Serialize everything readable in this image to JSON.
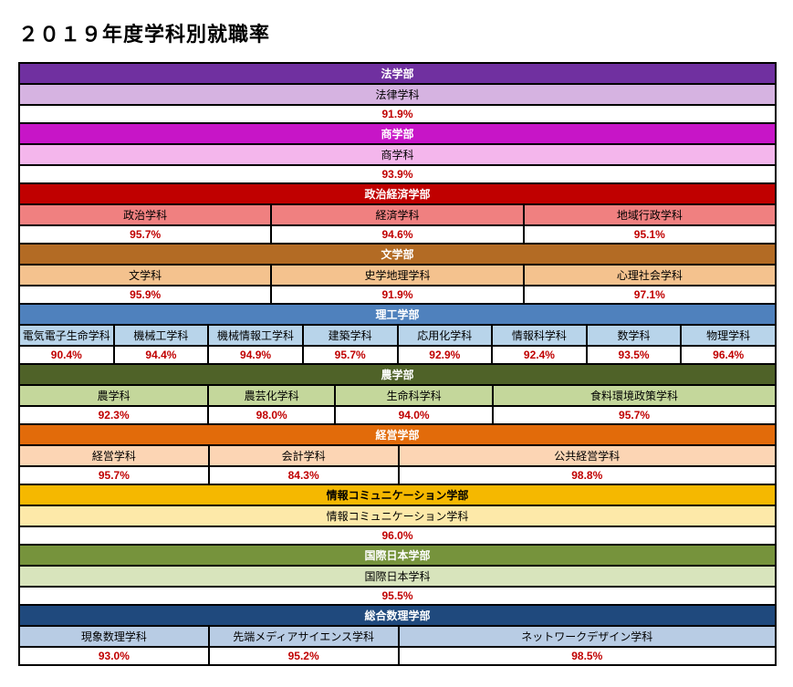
{
  "title": "２０１９年度学科別就職率",
  "colors": {
    "rate_text": "#c00000",
    "border": "#000000"
  },
  "faculties": [
    {
      "name": "法学部",
      "header_bg": "#7030a0",
      "header_text": "#ffffff",
      "dept_bg": "#d6b3e1",
      "departments": [
        {
          "name": "法律学科",
          "rate": "91.9%",
          "span": 24
        }
      ]
    },
    {
      "name": "商学部",
      "header_bg": "#c715c7",
      "header_text": "#ffffff",
      "dept_bg": "#f4b6ec",
      "departments": [
        {
          "name": "商学科",
          "rate": "93.9%",
          "span": 24
        }
      ]
    },
    {
      "name": "政治経済学部",
      "header_bg": "#c00000",
      "header_text": "#ffffff",
      "dept_bg": "#f08080",
      "departments": [
        {
          "name": "政治学科",
          "rate": "95.7%",
          "span": 8
        },
        {
          "name": "経済学科",
          "rate": "94.6%",
          "span": 8
        },
        {
          "name": "地域行政学科",
          "rate": "95.1%",
          "span": 8
        }
      ]
    },
    {
      "name": "文学部",
      "header_bg": "#b36b24",
      "header_text": "#ffffff",
      "dept_bg": "#f4c28e",
      "departments": [
        {
          "name": "文学科",
          "rate": "95.9%",
          "span": 8
        },
        {
          "name": "史学地理学科",
          "rate": "91.9%",
          "span": 8
        },
        {
          "name": "心理社会学科",
          "rate": "97.1%",
          "span": 8
        }
      ]
    },
    {
      "name": "理工学部",
      "header_bg": "#4f81bd",
      "header_text": "#ffffff",
      "dept_bg": "#b8d4ea",
      "departments": [
        {
          "name": "電気電子生命学科",
          "rate": "90.4%",
          "span": 3
        },
        {
          "name": "機械工学科",
          "rate": "94.4%",
          "span": 3
        },
        {
          "name": "機械情報工学科",
          "rate": "94.9%",
          "span": 3
        },
        {
          "name": "建築学科",
          "rate": "95.7%",
          "span": 3
        },
        {
          "name": "応用化学科",
          "rate": "92.9%",
          "span": 3
        },
        {
          "name": "情報科学科",
          "rate": "92.4%",
          "span": 3
        },
        {
          "name": "数学科",
          "rate": "93.5%",
          "span": 3
        },
        {
          "name": "物理学科",
          "rate": "96.4%",
          "span": 3
        }
      ]
    },
    {
      "name": "農学部",
      "header_bg": "#4f6228",
      "header_text": "#ffffff",
      "dept_bg": "#c4d79b",
      "departments": [
        {
          "name": "農学科",
          "rate": "92.3%",
          "span": 6
        },
        {
          "name": "農芸化学科",
          "rate": "98.0%",
          "span": 4
        },
        {
          "name": "生命科学科",
          "rate": "94.0%",
          "span": 5
        },
        {
          "name": "食料環境政策学科",
          "rate": "95.7%",
          "span": 9
        }
      ]
    },
    {
      "name": "経営学部",
      "header_bg": "#e26b0a",
      "header_text": "#ffffff",
      "dept_bg": "#fcd5b4",
      "departments": [
        {
          "name": "経営学科",
          "rate": "95.7%",
          "span": 6
        },
        {
          "name": "会計学科",
          "rate": "84.3%",
          "span": 6
        },
        {
          "name": "公共経営学科",
          "rate": "98.8%",
          "span": 12
        }
      ]
    },
    {
      "name": "情報コミュニケーション学部",
      "header_bg": "#f5b800",
      "header_text": "#000000",
      "dept_bg": "#fde9a9",
      "departments": [
        {
          "name": "情報コミュニケーション学科",
          "rate": "96.0%",
          "span": 24
        }
      ]
    },
    {
      "name": "国際日本学部",
      "header_bg": "#76933c",
      "header_text": "#ffffff",
      "dept_bg": "#d8e4bc",
      "departments": [
        {
          "name": "国際日本学科",
          "rate": "95.5%",
          "span": 24
        }
      ]
    },
    {
      "name": "総合数理学部",
      "header_bg": "#1f497d",
      "header_text": "#ffffff",
      "dept_bg": "#b8cce4",
      "departments": [
        {
          "name": "現象数理学科",
          "rate": "93.0%",
          "span": 6
        },
        {
          "name": "先端メディアサイエンス学科",
          "rate": "95.2%",
          "span": 6
        },
        {
          "name": "ネットワークデザイン学科",
          "rate": "98.5%",
          "span": 12
        }
      ]
    }
  ]
}
